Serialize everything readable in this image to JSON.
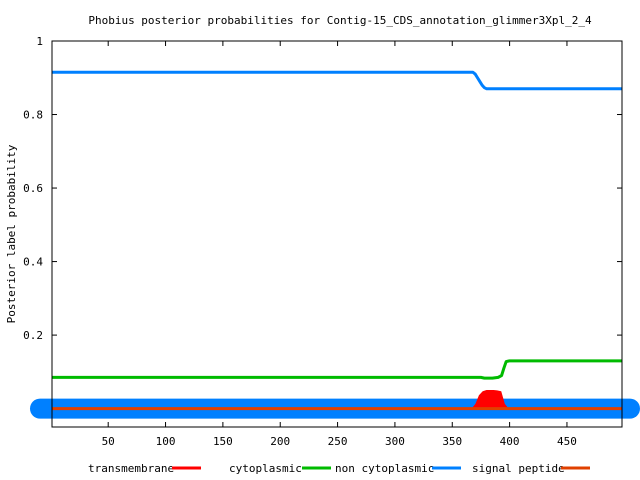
{
  "chart_data": {
    "type": "line",
    "title": "Phobius posterior probabilities for Contig-15_CDS_annotation_glimmer3Xpl_2_4",
    "ylabel": "Posterior label probability",
    "xlabel": "",
    "xlim": [
      1,
      498
    ],
    "ylim": [
      -0.05,
      1.0
    ],
    "xticks": [
      50,
      100,
      150,
      200,
      250,
      300,
      350,
      400,
      450
    ],
    "yticks": [
      0.2,
      0.4,
      0.6,
      0.8,
      1
    ],
    "ytick_labels": [
      "0.2",
      "0.4",
      "0.6",
      "0.8",
      "1"
    ],
    "grid": false,
    "legend_position": "bottom",
    "series": [
      {
        "name": "transmembrane",
        "color": "#ff0000",
        "style": "filled",
        "x": [
          1,
          368,
          371,
          374,
          377,
          380,
          383,
          386,
          389,
          392,
          395,
          398,
          498
        ],
        "y": [
          0,
          0,
          0.012,
          0.035,
          0.045,
          0.048,
          0.048,
          0.048,
          0.047,
          0.045,
          0.012,
          0,
          0
        ]
      },
      {
        "name": "cytoplasmic",
        "color": "#00bb00",
        "style": "line",
        "x": [
          1,
          365,
          375,
          378,
          385,
          390,
          393,
          395,
          397,
          400,
          498
        ],
        "y": [
          0.085,
          0.085,
          0.085,
          0.083,
          0.083,
          0.085,
          0.09,
          0.11,
          0.128,
          0.13,
          0.13
        ]
      },
      {
        "name": "non cytoplasmic",
        "color": "#0080ff",
        "style": "line",
        "x": [
          1,
          368,
          370,
          372,
          374,
          376,
          378,
          380,
          498
        ],
        "y": [
          0.915,
          0.915,
          0.91,
          0.9,
          0.89,
          0.88,
          0.873,
          0.87,
          0.87
        ]
      },
      {
        "name": "signal peptide",
        "color": "#e04000",
        "style": "line",
        "x": [
          1,
          498
        ],
        "y": [
          0,
          0
        ]
      }
    ]
  },
  "legend": [
    {
      "label": "transmembrane",
      "color": "#ff0000"
    },
    {
      "label": "cytoplasmic",
      "color": "#00bb00"
    },
    {
      "label": "non cytoplasmic",
      "color": "#0080ff"
    },
    {
      "label": "signal peptide",
      "color": "#e04000"
    }
  ]
}
